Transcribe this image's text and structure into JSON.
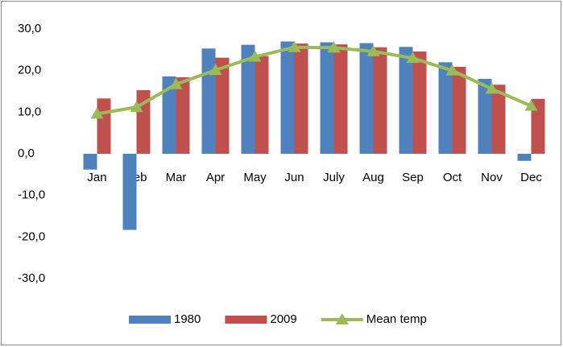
{
  "chart_data": {
    "type": "bar",
    "categories": [
      "Jan",
      "Feb",
      "Mar",
      "Apr",
      "May",
      "Jun",
      "July",
      "Aug",
      "Sep",
      "Oct",
      "Nov",
      "Dec"
    ],
    "series": [
      {
        "name": "1980",
        "type": "bar",
        "color": "#4f81bd",
        "values": [
          -3.8,
          -18.3,
          18.6,
          25.3,
          26.2,
          27.0,
          26.8,
          26.6,
          25.7,
          22.0,
          18.0,
          -1.7
        ]
      },
      {
        "name": "2009",
        "type": "bar",
        "color": "#c0504d",
        "values": [
          13.3,
          15.3,
          18.4,
          23.1,
          23.5,
          26.5,
          26.3,
          25.6,
          24.6,
          20.9,
          16.6,
          13.2
        ]
      },
      {
        "name": "Mean temp",
        "type": "line",
        "color": "#9bbb59",
        "values": [
          9.6,
          11.2,
          16.7,
          20.1,
          23.3,
          25.6,
          25.5,
          24.6,
          23.0,
          20.0,
          15.6,
          11.5
        ]
      }
    ],
    "ylim": [
      -30,
      30
    ],
    "yticks": [
      {
        "value": -30,
        "label": "-30,0"
      },
      {
        "value": -20,
        "label": "-20,0"
      },
      {
        "value": -10,
        "label": "-10,0"
      },
      {
        "value": 0,
        "label": "0,0"
      },
      {
        "value": 10,
        "label": "10,0"
      },
      {
        "value": 20,
        "label": "20,0"
      },
      {
        "value": 30,
        "label": "30,0"
      }
    ],
    "grid": false,
    "legend": "bottom"
  }
}
